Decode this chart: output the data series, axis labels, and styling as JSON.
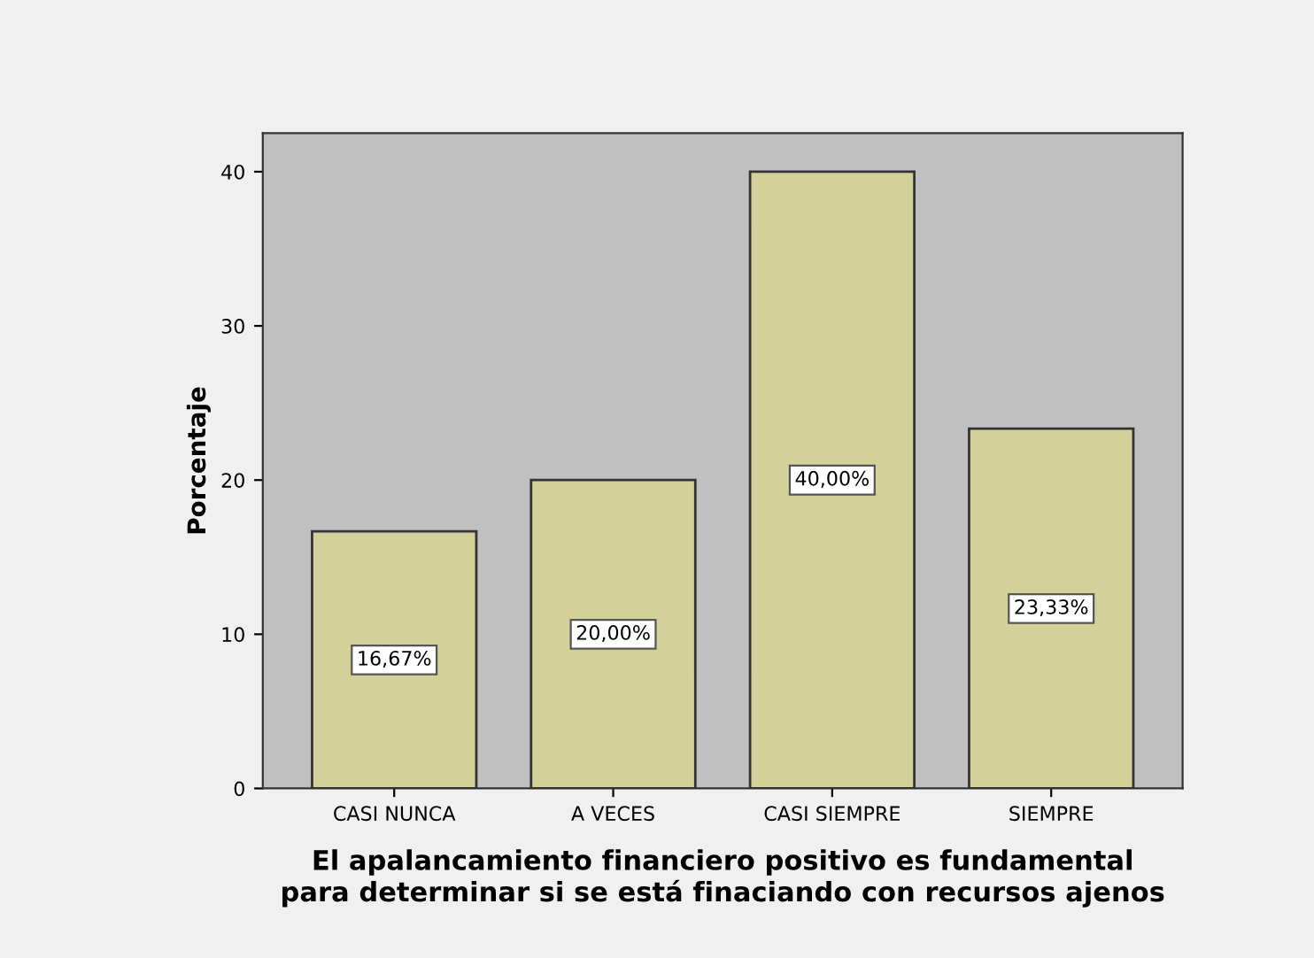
{
  "chart_data": {
    "type": "bar",
    "xlabel": "El apalancamiento financiero positivo es fundamental\npara determinar si se está finaciando con recursos ajenos",
    "ylabel": "Porcentaje",
    "categories": [
      "CASI NUNCA",
      "A VECES",
      "CASI SIEMPRE",
      "SIEMPRE"
    ],
    "values": [
      16.67,
      20.0,
      40.0,
      23.33
    ],
    "value_labels": [
      "16,67%",
      "20,00%",
      "40,00%",
      "23,33%"
    ],
    "color": "#d4d09a",
    "ylim": [
      0,
      42.5
    ],
    "yticks": [
      0,
      10,
      20,
      30,
      40
    ],
    "grid": false,
    "legend": false
  }
}
